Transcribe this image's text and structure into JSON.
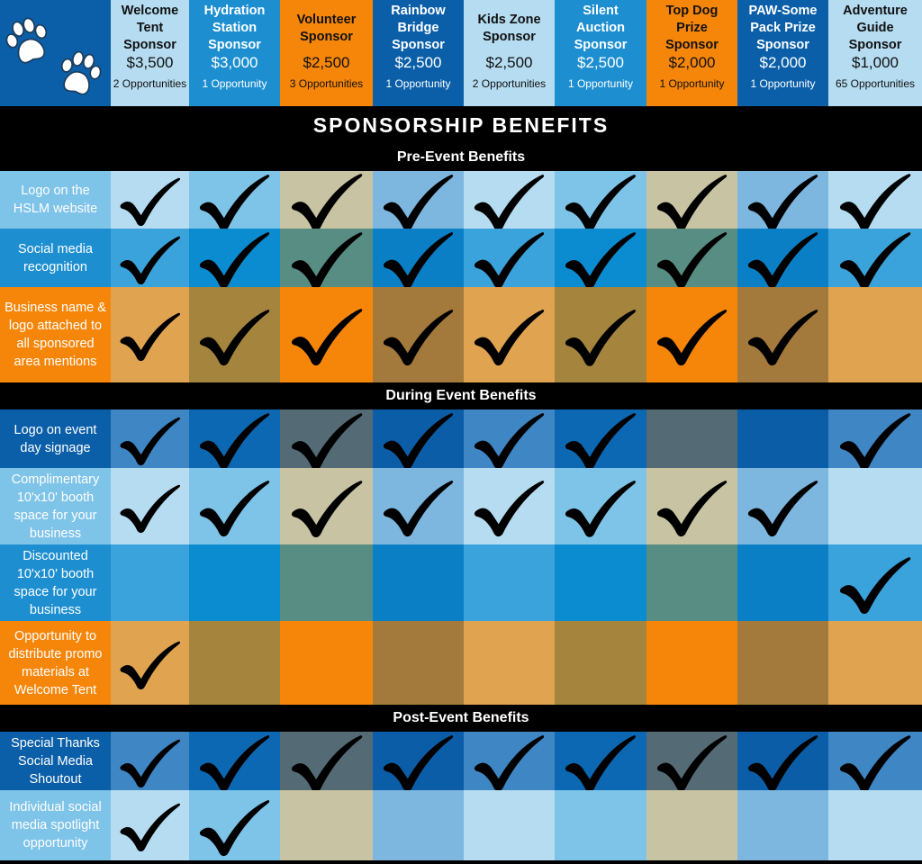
{
  "colors": {
    "dark_blue": "#0b5fa8",
    "light_blue": "#b5dcf1",
    "sky_blue": "#7ec3e8",
    "orange": "#f6860a",
    "black": "#000000"
  },
  "header_icon": "paw-print-icon",
  "sponsors": [
    {
      "name": "Welcome Tent Sponsor",
      "price": "$3,500",
      "opps": "2 Opportunities",
      "bg": "#b5dcf1",
      "text": "#111111"
    },
    {
      "name": "Hydration Station Sponsor",
      "price": "$3,000",
      "opps": "1 Opportunity",
      "bg": "#1d8fd0",
      "text": "#ffffff"
    },
    {
      "name": "Volunteer Sponsor",
      "price": "$2,500",
      "opps": "3 Opportunities",
      "bg": "#f6860a",
      "text": "#111111"
    },
    {
      "name": "Rainbow Bridge Sponsor",
      "price": "$2,500",
      "opps": "1 Opportunity",
      "bg": "#0b5fa8",
      "text": "#ffffff"
    },
    {
      "name": "Kids Zone Sponsor",
      "price": "$2,500",
      "opps": "2 Opportunities",
      "bg": "#b5dcf1",
      "text": "#111111"
    },
    {
      "name": "Silent Auction Sponsor",
      "price": "$2,500",
      "opps": "1 Opportunity",
      "bg": "#1d8fd0",
      "text": "#ffffff"
    },
    {
      "name": "Top Dog Prize Sponsor",
      "price": "$2,000",
      "opps": "1 Opportunity",
      "bg": "#f6860a",
      "text": "#111111"
    },
    {
      "name": "PAW-Some Pack Prize Sponsor",
      "price": "$2,000",
      "opps": "1 Opportunity",
      "bg": "#0b5fa8",
      "text": "#ffffff"
    },
    {
      "name": "Adventure Guide Sponsor",
      "price": "$1,000",
      "opps": "65 Opportunities",
      "bg": "#b5dcf1",
      "text": "#111111"
    }
  ],
  "title": "SPONSORSHIP BENEFITS",
  "sections": [
    {
      "title": "Pre-Event Benefits",
      "rows": [
        {
          "label": "Logo on the HSLM website",
          "palette": "light",
          "checks": [
            true,
            true,
            true,
            true,
            true,
            true,
            true,
            true,
            true
          ]
        },
        {
          "label": "Social media recognition",
          "palette": "mid",
          "checks": [
            true,
            true,
            true,
            true,
            true,
            true,
            true,
            true,
            true
          ]
        },
        {
          "label": "Business name & logo attached to all sponsored area mentions",
          "palette": "orange",
          "checks": [
            true,
            true,
            true,
            true,
            true,
            true,
            true,
            true,
            false
          ]
        }
      ]
    },
    {
      "title": "During Event Benefits",
      "rows": [
        {
          "label": "Logo on event day signage",
          "palette": "dark",
          "checks": [
            true,
            true,
            true,
            true,
            true,
            true,
            false,
            false,
            true
          ]
        },
        {
          "label": "Complimentary 10'x10' booth space for your business",
          "palette": "light",
          "checks": [
            true,
            true,
            true,
            true,
            true,
            true,
            true,
            true,
            false
          ]
        },
        {
          "label": "Discounted 10'x10' booth space for your business",
          "palette": "mid",
          "checks": [
            false,
            false,
            false,
            false,
            false,
            false,
            false,
            false,
            true
          ]
        },
        {
          "label": "Opportunity to distribute promo materials at Welcome Tent",
          "palette": "orange",
          "checks": [
            true,
            false,
            false,
            false,
            false,
            false,
            false,
            false,
            false
          ]
        }
      ]
    },
    {
      "title": "Post-Event Benefits",
      "rows": [
        {
          "label": "Special Thanks Social Media Shoutout",
          "palette": "dark",
          "checks": [
            true,
            true,
            true,
            true,
            true,
            true,
            true,
            true,
            true
          ]
        },
        {
          "label": "Individual social media spotlight opportunity",
          "palette": "light",
          "checks": [
            true,
            true,
            false,
            false,
            false,
            false,
            false,
            false,
            false
          ]
        }
      ]
    }
  ],
  "palettes": {
    "light": {
      "label": "#7ec3e8",
      "cells": [
        "#b5dcf1",
        "#7ec3e8",
        "#c7c3a3",
        "#7db6de",
        "#b5dcf1",
        "#7ec3e8",
        "#c7c3a3",
        "#7db6de",
        "#b5dcf1"
      ]
    },
    "mid": {
      "label": "#1d8fd0",
      "cells": [
        "#3aa3dc",
        "#0b8bd0",
        "#578d82",
        "#0b7fc6",
        "#3aa3dc",
        "#0b8bd0",
        "#578d82",
        "#0b7fc6",
        "#3aa3dc"
      ]
    },
    "orange": {
      "label": "#f6860a",
      "cells": [
        "#e0a451",
        "#a5843e",
        "#f6860a",
        "#a47a3c",
        "#e0a451",
        "#a5843e",
        "#f6860a",
        "#a47a3c",
        "#e0a451"
      ]
    },
    "dark": {
      "label": "#0b5fa8",
      "cells": [
        "#3f86c5",
        "#0c68b2",
        "#546a75",
        "#0c5da8",
        "#3f86c5",
        "#0c68b2",
        "#546a75",
        "#0c5da8",
        "#3f86c5"
      ]
    }
  }
}
